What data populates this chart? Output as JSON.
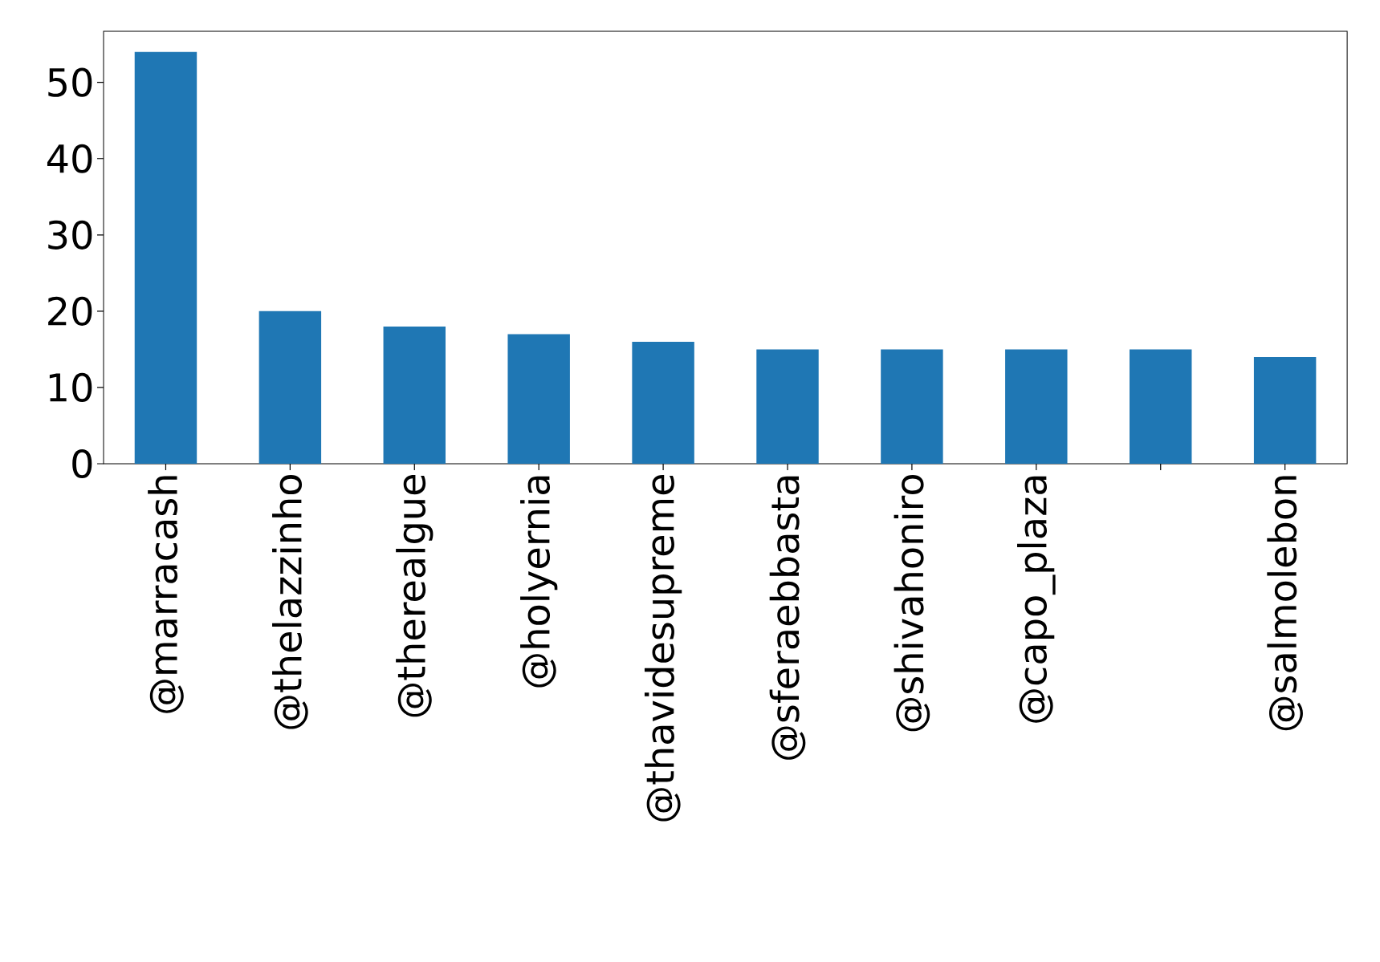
{
  "chart_data": {
    "type": "bar",
    "categories": [
      "@marracash",
      "@thelazzinho",
      "@therealgue",
      "@holyernia",
      "@thavidesupreme",
      "@sferaebbasta",
      "@shivahoniro",
      "@capo_plaza",
      null,
      "@salmolebon"
    ],
    "values": [
      54,
      20,
      18,
      17,
      16,
      15,
      15,
      15,
      15,
      14
    ],
    "color": "#1f77b4",
    "ylim": [
      0,
      56.7
    ],
    "yticks": [
      0,
      10,
      20,
      30,
      40,
      50
    ]
  }
}
